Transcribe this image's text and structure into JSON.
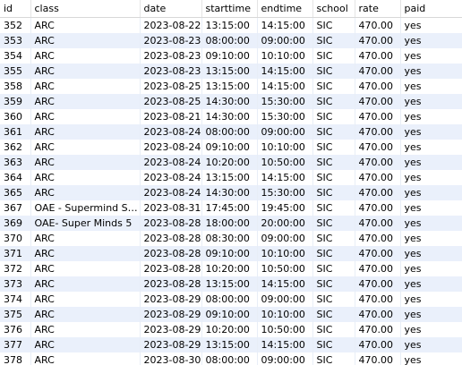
{
  "columns": [
    "id",
    "class",
    "date",
    "starttime",
    "endtime",
    "school",
    "rate",
    "paid"
  ],
  "rows": [
    [
      "352",
      "ARC",
      "2023-08-22",
      "13:15:00",
      "14:15:00",
      "SIC",
      "470.00",
      "yes"
    ],
    [
      "353",
      "ARC",
      "2023-08-23",
      "08:00:00",
      "09:00:00",
      "SIC",
      "470.00",
      "yes"
    ],
    [
      "354",
      "ARC",
      "2023-08-23",
      "09:10:00",
      "10:10:00",
      "SIC",
      "470.00",
      "yes"
    ],
    [
      "355",
      "ARC",
      "2023-08-23",
      "13:15:00",
      "14:15:00",
      "SIC",
      "470.00",
      "yes"
    ],
    [
      "358",
      "ARC",
      "2023-08-25",
      "13:15:00",
      "14:15:00",
      "SIC",
      "470.00",
      "yes"
    ],
    [
      "359",
      "ARC",
      "2023-08-25",
      "14:30:00",
      "15:30:00",
      "SIC",
      "470.00",
      "yes"
    ],
    [
      "360",
      "ARC",
      "2023-08-21",
      "14:30:00",
      "15:30:00",
      "SIC",
      "470.00",
      "yes"
    ],
    [
      "361",
      "ARC",
      "2023-08-24",
      "08:00:00",
      "09:00:00",
      "SIC",
      "470.00",
      "yes"
    ],
    [
      "362",
      "ARC",
      "2023-08-24",
      "09:10:00",
      "10:10:00",
      "SIC",
      "470.00",
      "yes"
    ],
    [
      "363",
      "ARC",
      "2023-08-24",
      "10:20:00",
      "10:50:00",
      "SIC",
      "470.00",
      "yes"
    ],
    [
      "364",
      "ARC",
      "2023-08-24",
      "13:15:00",
      "14:15:00",
      "SIC",
      "470.00",
      "yes"
    ],
    [
      "365",
      "ARC",
      "2023-08-24",
      "14:30:00",
      "15:30:00",
      "SIC",
      "470.00",
      "yes"
    ],
    [
      "367",
      "OAE  - Supermind St...",
      "2023-08-31",
      "17:45:00",
      "19:45:00",
      "SIC",
      "470.00",
      "yes"
    ],
    [
      "369",
      "OAE- Super Minds 5",
      "2023-08-28",
      "18:00:00",
      "20:00:00",
      "SIC",
      "470.00",
      "yes"
    ],
    [
      "370",
      "ARC",
      "2023-08-28",
      "08:30:00",
      "09:00:00",
      "SIC",
      "470.00",
      "yes"
    ],
    [
      "371",
      "ARC",
      "2023-08-28",
      "09:10:00",
      "10:10:00",
      "SIC",
      "470.00",
      "yes"
    ],
    [
      "372",
      "ARC",
      "2023-08-28",
      "10:20:00",
      "10:50:00",
      "SIC",
      "470.00",
      "yes"
    ],
    [
      "373",
      "ARC",
      "2023-08-28",
      "13:15:00",
      "14:15:00",
      "SIC",
      "470.00",
      "yes"
    ],
    [
      "374",
      "ARC",
      "2023-08-29",
      "08:00:00",
      "09:00:00",
      "SIC",
      "470.00",
      "yes"
    ],
    [
      "375",
      "ARC",
      "2023-08-29",
      "09:10:00",
      "10:10:00",
      "SIC",
      "470.00",
      "yes"
    ],
    [
      "376",
      "ARC",
      "2023-08-29",
      "10:20:00",
      "10:50:00",
      "SIC",
      "470.00",
      "yes"
    ],
    [
      "377",
      "ARC",
      "2023-08-29",
      "13:15:00",
      "14:15:00",
      "SIC",
      "470.00",
      "yes"
    ],
    [
      "378",
      "ARC",
      "2023-08-30",
      "08:00:00",
      "09:00:00",
      "SIC",
      "470.00",
      "yes"
    ]
  ]
}
